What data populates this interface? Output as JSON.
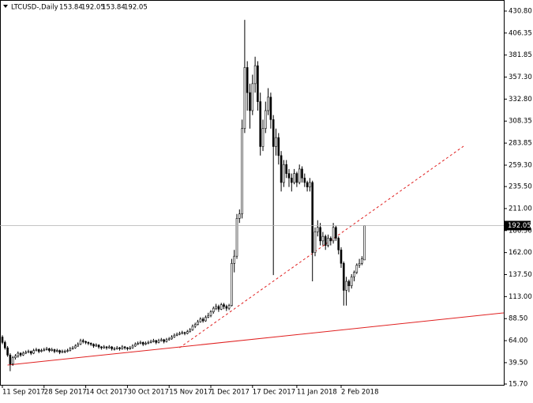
{
  "chart_data": {
    "type": "candlestick",
    "title": "LTCUSD-,Daily",
    "ylim": [
      15.7,
      430.8
    ],
    "yticks": [
      {
        "value": 430.8,
        "label": "430.80"
      },
      {
        "value": 406.35,
        "label": "406.35"
      },
      {
        "value": 381.85,
        "label": "381.85"
      },
      {
        "value": 357.3,
        "label": "357.30"
      },
      {
        "value": 332.8,
        "label": "332.80"
      },
      {
        "value": 308.35,
        "label": "308.35"
      },
      {
        "value": 283.85,
        "label": "283.85"
      },
      {
        "value": 259.3,
        "label": "259.30"
      },
      {
        "value": 235.5,
        "label": "235.50"
      },
      {
        "value": 211.0,
        "label": "211.00"
      },
      {
        "value": 186.5,
        "label": "186.50"
      },
      {
        "value": 162.0,
        "label": "162.00"
      },
      {
        "value": 137.5,
        "label": "137.50"
      },
      {
        "value": 113.0,
        "label": "113.00"
      },
      {
        "value": 88.5,
        "label": "88.50"
      },
      {
        "value": 64.0,
        "label": "64.00"
      },
      {
        "value": 39.5,
        "label": "39.50"
      },
      {
        "value": 15.7,
        "label": "15.70"
      }
    ],
    "categories": [
      "11 Sep 2017",
      null,
      null,
      null,
      null,
      null,
      null,
      null,
      null,
      null,
      null,
      null,
      null,
      null,
      null,
      null,
      "28 Sep 2017",
      null,
      null,
      null,
      null,
      null,
      null,
      null,
      null,
      null,
      null,
      null,
      null,
      null,
      null,
      null,
      "14 Oct 2017",
      null,
      null,
      null,
      null,
      null,
      null,
      null,
      null,
      null,
      null,
      null,
      null,
      null,
      null,
      null,
      "30 Oct 2017",
      null,
      null,
      null,
      null,
      null,
      null,
      null,
      null,
      null,
      null,
      null,
      null,
      null,
      null,
      null,
      "15 Nov 2017",
      null,
      null,
      null,
      null,
      null,
      null,
      null,
      null,
      null,
      null,
      null,
      null,
      null,
      null,
      null,
      "1 Dec 2017",
      null,
      null,
      null,
      null,
      null,
      null,
      null,
      null,
      null,
      null,
      null,
      null,
      null,
      null,
      null,
      "17 Dec 2017",
      null,
      null,
      null,
      null,
      null,
      null,
      null,
      null,
      null,
      null,
      null,
      null,
      null,
      null,
      null,
      null,
      "11 Jan 2018",
      null,
      null,
      null,
      null,
      null,
      null,
      null,
      null,
      null,
      null,
      null,
      null,
      null,
      null,
      null,
      null,
      "2 Feb 2018",
      null,
      null,
      null,
      null,
      null,
      null,
      null,
      null,
      null
    ],
    "candles": [
      [
        68,
        70,
        60,
        62
      ],
      [
        62,
        64,
        54,
        56
      ],
      [
        56,
        58,
        46,
        48
      ],
      [
        48,
        50,
        30,
        38
      ],
      [
        38,
        47,
        36,
        45
      ],
      [
        45,
        49,
        43,
        47
      ],
      [
        47,
        52,
        45,
        50
      ],
      [
        50,
        51,
        46,
        48
      ],
      [
        48,
        52,
        47,
        50
      ],
      [
        50,
        53,
        49,
        51
      ],
      [
        51,
        54,
        50,
        52
      ],
      [
        52,
        53,
        48,
        50
      ],
      [
        50,
        55,
        49,
        53
      ],
      [
        53,
        56,
        52,
        54
      ],
      [
        54,
        55,
        50,
        52
      ],
      [
        52,
        55,
        51,
        53
      ],
      [
        53,
        56,
        52,
        54
      ],
      [
        54,
        57,
        53,
        55
      ],
      [
        55,
        56,
        51,
        53
      ],
      [
        53,
        56,
        52,
        54
      ],
      [
        54,
        55,
        50,
        52
      ],
      [
        52,
        55,
        51,
        53
      ],
      [
        53,
        54,
        49,
        51
      ],
      [
        51,
        54,
        50,
        52
      ],
      [
        52,
        54,
        50,
        52
      ],
      [
        52,
        55,
        51,
        53
      ],
      [
        53,
        57,
        52,
        55
      ],
      [
        55,
        58,
        54,
        56
      ],
      [
        56,
        60,
        55,
        58
      ],
      [
        58,
        62,
        57,
        60
      ],
      [
        60,
        66,
        59,
        64
      ],
      [
        64,
        66,
        61,
        63
      ],
      [
        63,
        64,
        60,
        62
      ],
      [
        62,
        63,
        59,
        61
      ],
      [
        61,
        62,
        58,
        60
      ],
      [
        60,
        61,
        56,
        58
      ],
      [
        58,
        61,
        57,
        59
      ],
      [
        59,
        60,
        55,
        57
      ],
      [
        57,
        58,
        54,
        56
      ],
      [
        56,
        59,
        55,
        57
      ],
      [
        57,
        58,
        54,
        56
      ],
      [
        56,
        59,
        55,
        57
      ],
      [
        57,
        58,
        53,
        55
      ],
      [
        55,
        57,
        53,
        55
      ],
      [
        55,
        58,
        54,
        56
      ],
      [
        56,
        57,
        53,
        55
      ],
      [
        55,
        59,
        54,
        57
      ],
      [
        57,
        58,
        54,
        56
      ],
      [
        56,
        57,
        53,
        55
      ],
      [
        55,
        58,
        54,
        56
      ],
      [
        56,
        60,
        55,
        58
      ],
      [
        58,
        62,
        57,
        60
      ],
      [
        60,
        63,
        59,
        61
      ],
      [
        61,
        64,
        60,
        62
      ],
      [
        62,
        63,
        58,
        60
      ],
      [
        60,
        63,
        59,
        61
      ],
      [
        61,
        64,
        60,
        62
      ],
      [
        62,
        65,
        61,
        63
      ],
      [
        63,
        66,
        62,
        64
      ],
      [
        64,
        65,
        60,
        62
      ],
      [
        62,
        66,
        61,
        64
      ],
      [
        64,
        67,
        63,
        65
      ],
      [
        65,
        66,
        61,
        63
      ],
      [
        63,
        67,
        62,
        65
      ],
      [
        65,
        68,
        64,
        66
      ],
      [
        66,
        70,
        65,
        68
      ],
      [
        68,
        72,
        67,
        70
      ],
      [
        70,
        73,
        69,
        71
      ],
      [
        71,
        74,
        70,
        72
      ],
      [
        72,
        75,
        71,
        73
      ],
      [
        73,
        74,
        70,
        72
      ],
      [
        72,
        76,
        71,
        74
      ],
      [
        74,
        78,
        73,
        76
      ],
      [
        76,
        82,
        75,
        80
      ],
      [
        80,
        84,
        78,
        82
      ],
      [
        82,
        87,
        81,
        85
      ],
      [
        85,
        90,
        84,
        88
      ],
      [
        88,
        90,
        84,
        86
      ],
      [
        86,
        92,
        85,
        90
      ],
      [
        90,
        95,
        89,
        92
      ],
      [
        92,
        98,
        90,
        96
      ],
      [
        96,
        102,
        94,
        100
      ],
      [
        100,
        105,
        98,
        102
      ],
      [
        102,
        104,
        96,
        99
      ],
      [
        99,
        106,
        98,
        104
      ],
      [
        104,
        106,
        99,
        102
      ],
      [
        102,
        104,
        97,
        100
      ],
      [
        100,
        105,
        98,
        103
      ],
      [
        103,
        155,
        102,
        150
      ],
      [
        150,
        165,
        140,
        158
      ],
      [
        158,
        205,
        155,
        200
      ],
      [
        200,
        210,
        195,
        205
      ],
      [
        205,
        310,
        200,
        300
      ],
      [
        300,
        421,
        295,
        368
      ],
      [
        368,
        375,
        320,
        340
      ],
      [
        340,
        350,
        300,
        320
      ],
      [
        320,
        360,
        315,
        350
      ],
      [
        350,
        380,
        340,
        370
      ],
      [
        370,
        375,
        320,
        330
      ],
      [
        330,
        340,
        270,
        280
      ],
      [
        280,
        310,
        275,
        300
      ],
      [
        300,
        330,
        295,
        320
      ],
      [
        320,
        345,
        315,
        335
      ],
      [
        335,
        340,
        300,
        310
      ],
      [
        310,
        315,
        137,
        280
      ],
      [
        280,
        300,
        270,
        290
      ],
      [
        290,
        295,
        260,
        270
      ],
      [
        270,
        275,
        230,
        240
      ],
      [
        240,
        265,
        235,
        260
      ],
      [
        260,
        265,
        245,
        250
      ],
      [
        250,
        255,
        235,
        245
      ],
      [
        245,
        250,
        230,
        240
      ],
      [
        240,
        255,
        238,
        250
      ],
      [
        250,
        252,
        235,
        240
      ],
      [
        240,
        260,
        238,
        255
      ],
      [
        255,
        258,
        240,
        245
      ],
      [
        245,
        250,
        235,
        240
      ],
      [
        240,
        242,
        230,
        235
      ],
      [
        235,
        245,
        230,
        240
      ],
      [
        240,
        242,
        130,
        162
      ],
      [
        162,
        190,
        158,
        185
      ],
      [
        185,
        198,
        180,
        190
      ],
      [
        190,
        195,
        170,
        175
      ],
      [
        175,
        185,
        170,
        180
      ],
      [
        180,
        182,
        165,
        170
      ],
      [
        170,
        182,
        168,
        178
      ],
      [
        178,
        180,
        170,
        175
      ],
      [
        175,
        195,
        172,
        190
      ],
      [
        190,
        192,
        175,
        178
      ],
      [
        178,
        180,
        160,
        165
      ],
      [
        165,
        168,
        145,
        150
      ],
      [
        150,
        152,
        103,
        120
      ],
      [
        120,
        135,
        103,
        130
      ],
      [
        130,
        132,
        118,
        125
      ],
      [
        125,
        138,
        122,
        135
      ],
      [
        135,
        142,
        130,
        140
      ],
      [
        140,
        150,
        138,
        148
      ],
      [
        148,
        155,
        145,
        150
      ],
      [
        150,
        158,
        148,
        155
      ],
      [
        153.84,
        192.05,
        153.84,
        192.05
      ]
    ],
    "trendlines": [
      {
        "style": "solid",
        "color": "#e02020",
        "x": [
          2,
          192.4
        ],
        "y": [
          36.8,
          94.9
        ]
      },
      {
        "style": "dashed",
        "color": "#e02020",
        "x": [
          68,
          177
        ],
        "y": [
          56.1,
          280.4
        ]
      }
    ]
  }
}
